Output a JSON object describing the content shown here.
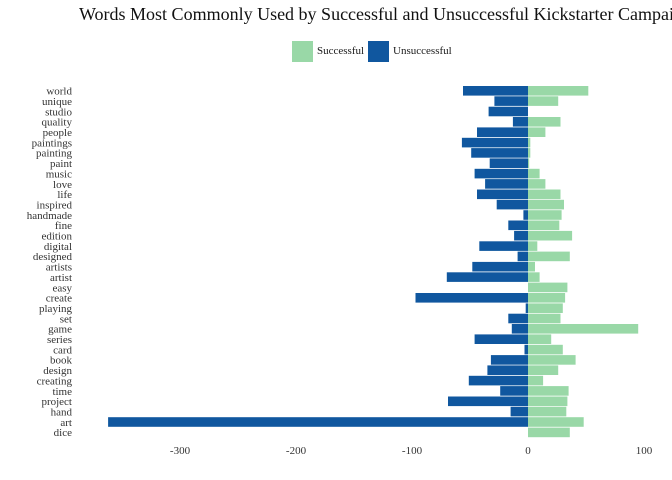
{
  "chart_data": {
    "type": "bar",
    "orientation": "horizontal",
    "title": "Words Most Commonly Used by Successful and Unsuccessful Kickstarter Campaigns",
    "categories": [
      "world",
      "unique",
      "studio",
      "quality",
      "people",
      "paintings",
      "painting",
      "paint",
      "music",
      "love",
      "life",
      "inspired",
      "handmade",
      "fine",
      "edition",
      "digital",
      "designed",
      "artists",
      "artist",
      "easy",
      "create",
      "playing",
      "set",
      "game",
      "series",
      "card",
      "book",
      "design",
      "creating",
      "time",
      "project",
      "hand",
      "art",
      "dice"
    ],
    "series": [
      {
        "name": "Successful",
        "color": "#99d8a7",
        "values": [
          52,
          26,
          0,
          28,
          15,
          2,
          2,
          1,
          10,
          15,
          28,
          31,
          29,
          27,
          38,
          8,
          36,
          6,
          10,
          34,
          32,
          30,
          28,
          95,
          20,
          30,
          41,
          26,
          13,
          35,
          34,
          33,
          48,
          36
        ]
      },
      {
        "name": "Unsuccessful",
        "color": "#10579f",
        "values": [
          -56,
          -29,
          -34,
          -13,
          -44,
          -57,
          -49,
          -33,
          -46,
          -37,
          -44,
          -27,
          -4,
          -17,
          -12,
          -42,
          -9,
          -48,
          -70,
          0,
          -97,
          -2,
          -17,
          -14,
          -46,
          -3,
          -32,
          -35,
          -51,
          -24,
          -69,
          -15,
          -362,
          0
        ]
      }
    ],
    "xlim": [
      -362,
      100
    ],
    "x_ticks": [
      -300,
      -200,
      -100,
      0,
      100
    ],
    "x_tick_labels": [
      "-300",
      "-200",
      "-100",
      "0",
      "100"
    ],
    "xlabel": "",
    "ylabel": "",
    "grid": false,
    "legend_position": "top"
  }
}
